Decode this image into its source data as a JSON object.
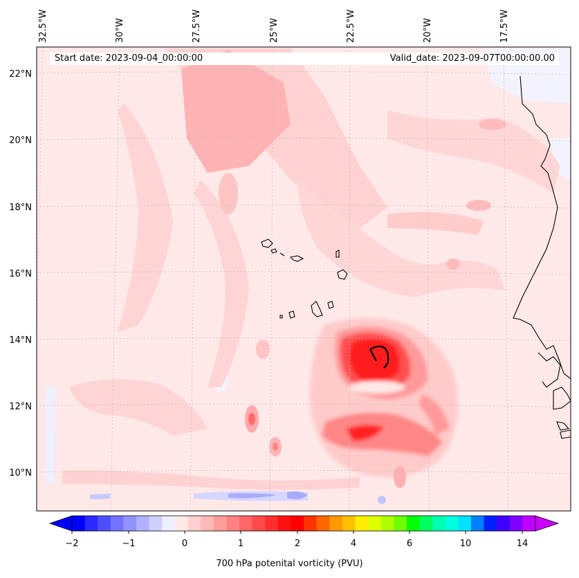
{
  "header": {
    "start_label": "Start date: 2023-09-04_00:00:00",
    "valid_label": "Valid_date: 2023-09-07T00:00:00.00"
  },
  "longitude_labels": [
    "32.5°W",
    "30°W",
    "27.5°W",
    "25°W",
    "22.5°W",
    "20°W",
    "17.5°W"
  ],
  "latitude_labels": [
    "22°N",
    "20°N",
    "18°N",
    "16°N",
    "14°N",
    "12°N",
    "10°N"
  ],
  "colorbar": {
    "title": "700 hPa potenital vorticity (PVU)",
    "tick_labels": [
      "−2",
      "−1",
      "0",
      "1",
      "2",
      "4",
      "6",
      "10",
      "14"
    ],
    "colors": [
      "#0000ff",
      "#2a2aff",
      "#4f4fff",
      "#7373ff",
      "#9292ff",
      "#b0b0ff",
      "#d0d0ff",
      "#eef0ff",
      "#ffe8e8",
      "#ffd0d0",
      "#ffb8b8",
      "#ff9d9d",
      "#ff8282",
      "#ff6666",
      "#ff4a4a",
      "#ff2e2e",
      "#ff1010",
      "#ff0000",
      "#ff3300",
      "#ff6600",
      "#ff9900",
      "#ffc000",
      "#ffee00",
      "#e0ff00",
      "#b0ff00",
      "#70ff00",
      "#00ff00",
      "#00ff60",
      "#00ffb0",
      "#00ffe0",
      "#00e0ff",
      "#0080ff",
      "#0020ff",
      "#4000ff",
      "#8000ff",
      "#c000ff"
    ]
  },
  "colors": {
    "background_field": "#ffe8e8",
    "coastline": "#000000",
    "gridline": "#bbbbbb"
  }
}
